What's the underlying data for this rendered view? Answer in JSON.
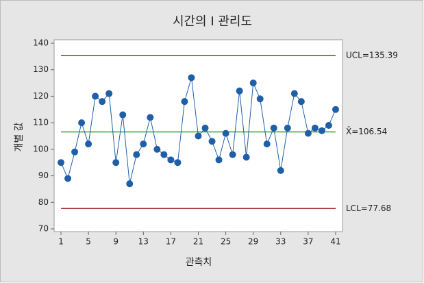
{
  "chart_data": {
    "type": "line",
    "title": "시간의 I 관리도",
    "x_label": "관측치",
    "y_label": "개별 값",
    "x": [
      1,
      2,
      3,
      4,
      5,
      6,
      7,
      8,
      9,
      10,
      11,
      12,
      13,
      14,
      15,
      16,
      17,
      18,
      19,
      20,
      21,
      22,
      23,
      24,
      25,
      26,
      27,
      28,
      29,
      30,
      31,
      32,
      33,
      34,
      35,
      36,
      37,
      38,
      39,
      40,
      41
    ],
    "series": [
      {
        "color": "#1f5fa8",
        "values": [
          95,
          89,
          99,
          110,
          102,
          120,
          118,
          121,
          95,
          113,
          87,
          98,
          102,
          112,
          100,
          98,
          96,
          95,
          118,
          127,
          105,
          108,
          103,
          96,
          106,
          98,
          122,
          97,
          125,
          119,
          102,
          108,
          92,
          108,
          121,
          118,
          106,
          108,
          107,
          109,
          115
        ]
      }
    ],
    "control_lines": [
      {
        "value": 135.39,
        "label": "UCL=135.39",
        "color": "#a52a2a"
      },
      {
        "value": 106.54,
        "label": "X̄=106.54",
        "color": "#3a9a3a"
      },
      {
        "value": 77.68,
        "label": "LCL=77.68",
        "color": "#a52a2a"
      }
    ],
    "xlim": [
      0,
      42
    ],
    "xticks": [
      1,
      5,
      9,
      13,
      17,
      21,
      25,
      29,
      33,
      37,
      41
    ],
    "ylim": [
      70,
      140
    ],
    "yticks": [
      70,
      80,
      90,
      100,
      110,
      120,
      130,
      140
    ]
  }
}
